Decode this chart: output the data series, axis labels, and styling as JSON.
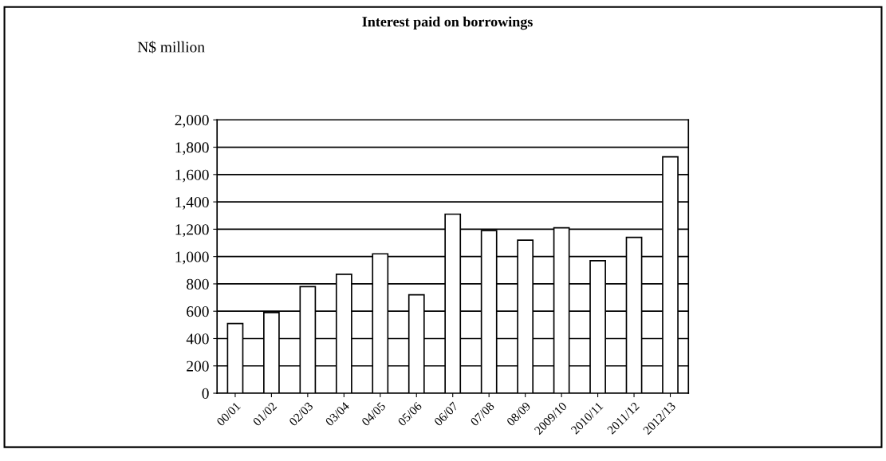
{
  "chart_data": {
    "type": "bar",
    "title": "Interest paid on borrowings",
    "ylabel": "N$ million",
    "categories": [
      "00/01",
      "01/02",
      "02/03",
      "03/04",
      "04/05",
      "05/06",
      "06/07",
      "07/08",
      "08/09",
      "2009/10",
      "2010/11",
      "2011/12",
      "2012/13"
    ],
    "values": [
      510,
      590,
      780,
      870,
      1020,
      720,
      1310,
      1190,
      1120,
      1210,
      970,
      1140,
      1730
    ],
    "color": "#ffffff",
    "ylim": [
      0,
      2000
    ],
    "yticks": [
      {
        "value": 0,
        "label": "0"
      },
      {
        "value": 200,
        "label": "200"
      },
      {
        "value": 400,
        "label": "400"
      },
      {
        "value": 600,
        "label": "600"
      },
      {
        "value": 800,
        "label": "800"
      },
      {
        "value": 1000,
        "label": "1,000"
      },
      {
        "value": 1200,
        "label": "1,200"
      },
      {
        "value": 1400,
        "label": "1,400"
      },
      {
        "value": 1600,
        "label": "1,600"
      },
      {
        "value": 1800,
        "label": "1,800"
      },
      {
        "value": 2000,
        "label": "2,000"
      }
    ],
    "grid": "y"
  }
}
